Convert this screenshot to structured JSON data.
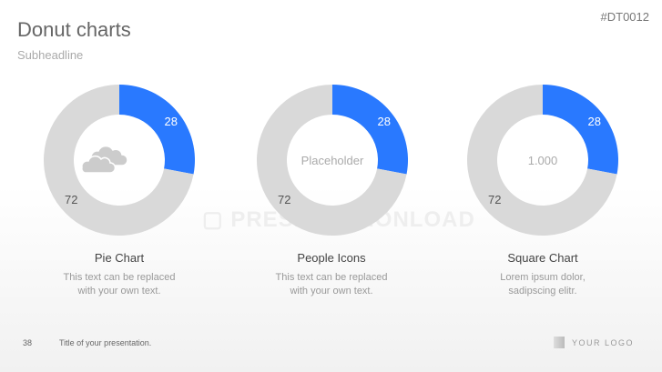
{
  "slide": {
    "title": "Donut charts",
    "subheadline": "Subheadline",
    "code": "#DT0012",
    "watermark": "PRESENTATIONLOAD",
    "footer": {
      "page": "38",
      "title": "Title of your presentation.",
      "logo": "YOUR LOGO"
    }
  },
  "colors": {
    "accent": "#2979ff",
    "rest": "#d9d9d9"
  },
  "chart_data": [
    {
      "type": "pie",
      "variant": "donut",
      "values": [
        28,
        72
      ],
      "labels": [
        "28",
        "72"
      ],
      "center_icon": "cloud-icon",
      "caption": "Pie Chart",
      "description": "This text can be replaced with your own text."
    },
    {
      "type": "pie",
      "variant": "donut",
      "values": [
        28,
        72
      ],
      "labels": [
        "28",
        "72"
      ],
      "center_text": "Placeholder",
      "caption": "People Icons",
      "description": "This text can be replaced with your own text."
    },
    {
      "type": "pie",
      "variant": "donut",
      "values": [
        28,
        72
      ],
      "labels": [
        "28",
        "72"
      ],
      "center_text": "1.000",
      "caption": "Square Chart",
      "description": "Lorem ipsum dolor, sadipscing elitr."
    }
  ]
}
